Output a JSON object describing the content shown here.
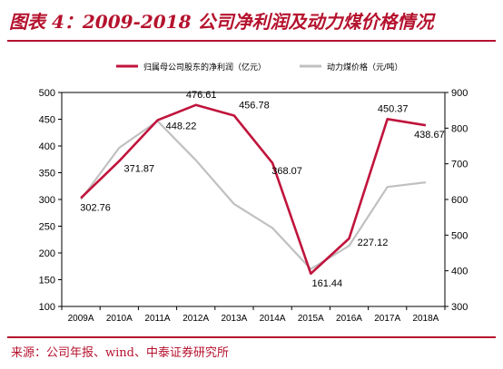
{
  "header": {
    "title": "图表 4：2009-2018 公司净利润及动力煤价格情况"
  },
  "footer": {
    "source": "来源：公司年报、wind、中泰证券研究所"
  },
  "colors": {
    "accent": "#b5122e",
    "profit_line": "#c0143c",
    "coal_line": "#c0c0c0"
  },
  "chart_data": {
    "type": "line",
    "categories": [
      "2009A",
      "2010A",
      "2011A",
      "2012A",
      "2013A",
      "2014A",
      "2015A",
      "2016A",
      "2017A",
      "2018A"
    ],
    "series": [
      {
        "name": "归属母公司股东的净利润（亿元）",
        "axis": "left",
        "color": "#c0143c",
        "values": [
          302.76,
          371.87,
          448.22,
          476.61,
          456.78,
          368.07,
          161.44,
          227.12,
          450.37,
          438.67
        ],
        "labels": [
          "302.76",
          "371.87",
          "448.22",
          "476.61",
          "456.78",
          "368.07",
          "161.44",
          "227.12",
          "450.37",
          "438.67"
        ]
      },
      {
        "name": "动力煤价格（元/吨）",
        "axis": "right",
        "color": "#c0c0c0",
        "values": [
          600,
          745,
          820,
          710,
          587,
          520,
          405,
          470,
          635,
          648
        ]
      }
    ],
    "y_left": {
      "ylim": [
        100,
        500
      ],
      "ticks": [
        "100",
        "150",
        "200",
        "250",
        "300",
        "350",
        "400",
        "450",
        "500"
      ]
    },
    "y_right": {
      "ylim": [
        300,
        900
      ],
      "ticks": [
        "300",
        "400",
        "500",
        "600",
        "700",
        "800",
        "900"
      ]
    },
    "legend_position": "top",
    "grid": false
  }
}
